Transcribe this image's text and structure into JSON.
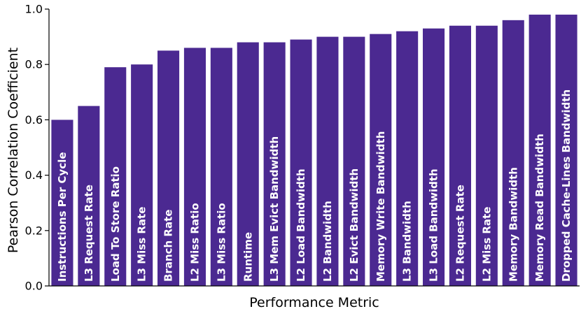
{
  "chart_data": {
    "type": "bar",
    "xlabel": "Performance Metric",
    "ylabel": "Pearson Correlation Coefficient",
    "ylim": [
      0,
      1.0
    ],
    "yticks": [
      "0.0",
      "0.2",
      "0.4",
      "0.6",
      "0.8",
      "1.0"
    ],
    "bar_color": "#4b2991",
    "grid": false,
    "categories": [
      "Instructions Per Cycle",
      "L3 Request Rate",
      "Load To Store Ratio",
      "L3 Miss Rate",
      "Branch Rate",
      "L2 Miss Ratio",
      "L3 Miss Ratio",
      "Runtime",
      "L3 Mem Evict Bandwidth",
      "L2 Load Bandwidth",
      "L2 Bandwidth",
      "L2 Evict Bandwidth",
      "Memory Write Bandwidth",
      "L3 Bandwidth",
      "L3 Load Bandwidth",
      "L2 Request Rate",
      "L2 Miss Rate",
      "Memory Bandwidth",
      "Memory Read Bandwidth",
      "Dropped Cache-Lines Bandwidth"
    ],
    "values": [
      0.6,
      0.65,
      0.79,
      0.8,
      0.85,
      0.86,
      0.86,
      0.88,
      0.88,
      0.89,
      0.9,
      0.9,
      0.91,
      0.92,
      0.93,
      0.94,
      0.94,
      0.96,
      0.98,
      0.98
    ]
  }
}
